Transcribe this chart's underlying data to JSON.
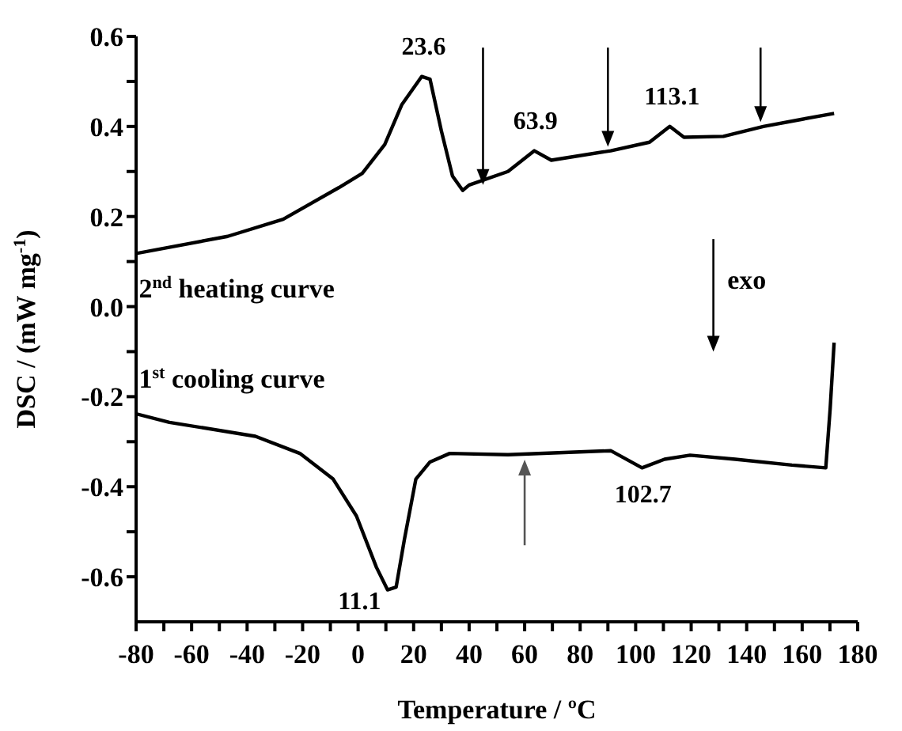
{
  "chart_data": {
    "type": "line",
    "xlabel": "Temperature / ºC",
    "ylabel": "DSC / (mW mg$^{-1}$)",
    "xlim": [
      -80,
      180
    ],
    "ylim": [
      -0.7,
      0.6
    ],
    "xticks": [
      -80,
      {
        "value": -70,
        "label": null
      },
      -60,
      {
        "value": -50,
        "label": null
      },
      -40,
      {
        "value": -30,
        "label": null
      },
      -20,
      {
        "value": -10,
        "label": null
      },
      0,
      {
        "value": 10,
        "label": null
      },
      20,
      {
        "value": 30,
        "label": null
      },
      40,
      {
        "value": 50,
        "label": null
      },
      60,
      {
        "value": 70,
        "label": null
      },
      80,
      {
        "value": 90,
        "label": null
      },
      100,
      {
        "value": 110,
        "label": null
      },
      120,
      {
        "value": 130,
        "label": null
      },
      140,
      {
        "value": 150,
        "label": null
      },
      160,
      {
        "value": 170,
        "label": null
      },
      180
    ],
    "yticks": [
      {
        "value": -0.6,
        "label": "-0.6"
      },
      {
        "value": -0.5,
        "label": null
      },
      {
        "value": -0.4,
        "label": "-0.4"
      },
      {
        "value": -0.3,
        "label": null
      },
      {
        "value": -0.2,
        "label": "-0.2"
      },
      {
        "value": -0.1,
        "label": null
      },
      {
        "value": 0,
        "label": "0.0"
      },
      {
        "value": 0.1,
        "label": null
      },
      {
        "value": 0.2,
        "label": "0.2"
      },
      {
        "value": 0.3,
        "label": null
      },
      {
        "value": 0.4,
        "label": "0.4"
      },
      {
        "value": 0.5,
        "label": null
      },
      {
        "value": 0.6,
        "label": "0.6"
      }
    ],
    "grid": false,
    "legend": false,
    "marker": "none",
    "line_style": "solid",
    "series": [
      {
        "color": "#000000",
        "x": [
          -80,
          -47,
          -27,
          -7,
          1.5,
          9.6,
          15.7,
          22.9,
          25.9,
          30,
          34,
          37.7,
          40,
          54,
          63.5,
          69.6,
          91,
          105,
          112.3,
          117.4,
          131.6,
          146,
          160,
          171.5
        ],
        "values": [
          0.118,
          0.156,
          0.194,
          0.264,
          0.296,
          0.36,
          0.448,
          0.511,
          0.505,
          0.39,
          0.29,
          0.258,
          0.27,
          0.3,
          0.346,
          0.325,
          0.346,
          0.365,
          0.4,
          0.376,
          0.378,
          0.4,
          0.416,
          0.429
        ]
      },
      {
        "color": "#000000",
        "x": [
          -80,
          -68,
          -37,
          -21,
          -9,
          -0.6,
          6.6,
          10.6,
          13.7,
          16.7,
          20.8,
          25.9,
          33,
          54,
          91,
          102.3,
          110.4,
          119.6,
          135.9,
          156.3,
          168.5,
          170.1,
          171.5
        ],
        "values": [
          -0.238,
          -0.257,
          -0.288,
          -0.326,
          -0.383,
          -0.465,
          -0.579,
          -0.629,
          -0.623,
          -0.516,
          -0.383,
          -0.345,
          -0.326,
          -0.329,
          -0.32,
          -0.358,
          -0.339,
          -0.33,
          -0.339,
          -0.352,
          -0.358,
          -0.225,
          -0.08
        ]
      }
    ],
    "annotations": [
      {
        "text": "23.6",
        "x": 23.6,
        "y": 0.51
      },
      {
        "text": "63.9",
        "x": 63.9,
        "y": 0.346
      },
      {
        "text": "113.1",
        "x": 113.1,
        "y": 0.4
      },
      {
        "text": "11.1",
        "x": 11.1,
        "y": -0.629
      },
      {
        "text": "102.7",
        "x": 102.7,
        "y": -0.358
      },
      "2$^{nd}$ heating curve",
      "1$^{st}$ cooling curve",
      "exo"
    ]
  }
}
